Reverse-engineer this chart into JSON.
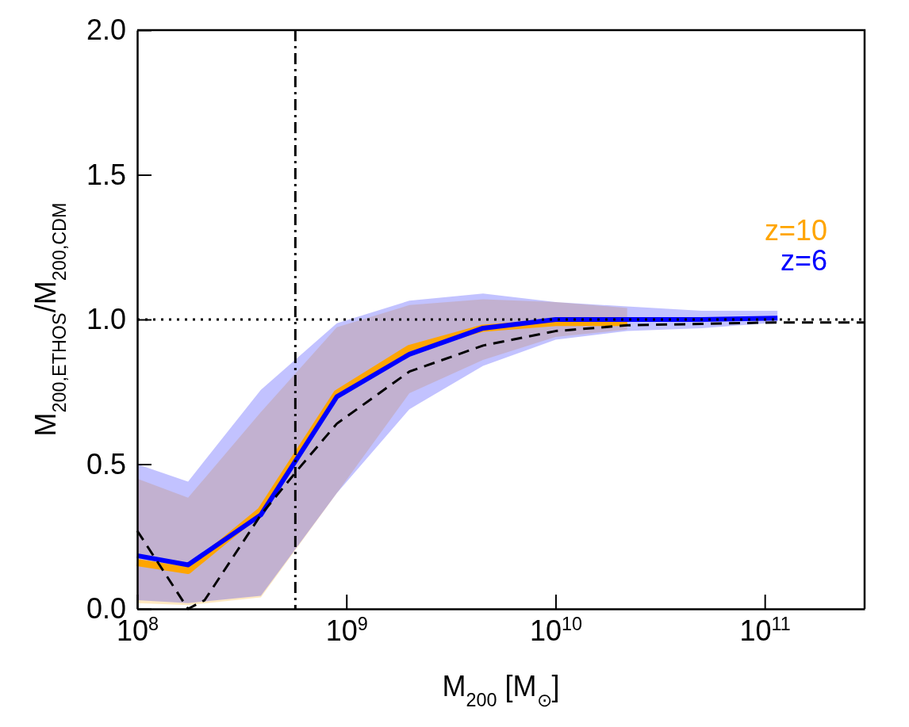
{
  "chart_data": {
    "type": "line",
    "xlabel": "M$_{200}$ [M$_{⊙}$]",
    "ylabel": "M$_{200,ETHOS}$/M$_{200,CDM}$",
    "log": "x",
    "legend": "right",
    "grid": false,
    "marker": "none",
    "xlim": [
      100000000,
      300000000000
    ],
    "ylim": [
      0,
      2
    ],
    "xticks": [
      {
        "value": 100000000,
        "label": "10$^{8}$"
      },
      {
        "value": 1000000000,
        "label": "10$^{9}$"
      },
      {
        "value": 10000000000,
        "label": "10$^{10}$"
      },
      {
        "value": 100000000000,
        "label": "10$^{11}$"
      }
    ],
    "yticks": [
      {
        "value": 0,
        "label": "0.0"
      },
      {
        "value": 0.5,
        "label": "0.5"
      },
      {
        "value": 1,
        "label": "1.0"
      },
      {
        "value": 1.5,
        "label": "1.5"
      },
      {
        "value": 2,
        "label": "2.0"
      }
    ],
    "ref_lines": [
      {
        "axis": "x",
        "value": 570000000,
        "line_style": "dashdot",
        "color": "#000000"
      },
      {
        "axis": "y",
        "value": 1,
        "line_style": "dotted",
        "color": "#000000"
      }
    ],
    "series": [
      {
        "name": "z=10",
        "color": "#ffa500",
        "x": [
          100000000,
          175000000,
          390000000,
          900000000,
          2000000000,
          4500000000,
          10000000000,
          22000000000
        ],
        "values": [
          0.16,
          0.133,
          0.339,
          0.744,
          0.9,
          0.97,
          0.99,
          0.99
        ],
        "lower": [
          0.02,
          0.013,
          0.04,
          0.4,
          0.745,
          0.86,
          0.94,
          0.965
        ],
        "upper": [
          0.45,
          0.384,
          0.68,
          0.973,
          1.05,
          1.07,
          1.06,
          1.04
        ]
      },
      {
        "name": "z=6",
        "color": "#0000ff",
        "x": [
          100000000,
          175000000,
          390000000,
          900000000,
          2000000000,
          4500000000,
          10000000000,
          22000000000,
          50000000000,
          115000000000
        ],
        "values": [
          0.184,
          0.152,
          0.325,
          0.733,
          0.88,
          0.97,
          1.0,
          1.0,
          1.0,
          1.005
        ],
        "lower": [
          0.03,
          0.02,
          0.045,
          0.4,
          0.69,
          0.84,
          0.93,
          0.96,
          0.97,
          0.99
        ],
        "upper": [
          0.5,
          0.44,
          0.757,
          0.987,
          1.065,
          1.09,
          1.06,
          1.045,
          1.03,
          1.03
        ]
      },
      {
        "color": "#000000",
        "line_style": "dashed",
        "x": [
          100000000,
          175000000,
          210000000,
          390000000,
          600000000,
          900000000,
          2000000000,
          4500000000,
          10000000000,
          22000000000,
          50000000000,
          115000000000,
          300000000000
        ],
        "values": [
          0.27,
          0.0,
          0.03,
          0.325,
          0.49,
          0.64,
          0.82,
          0.91,
          0.96,
          0.98,
          0.985,
          0.99,
          0.99
        ]
      }
    ]
  }
}
